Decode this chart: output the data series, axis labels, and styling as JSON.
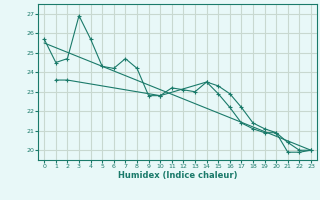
{
  "xlabel": "Humidex (Indice chaleur)",
  "background_color": "#e8f8f8",
  "grid_color": "#c8d8d0",
  "line_color": "#1a7a6a",
  "xlim": [
    -0.5,
    23.5
  ],
  "ylim": [
    19.5,
    27.5
  ],
  "yticks": [
    20,
    21,
    22,
    23,
    24,
    25,
    26,
    27
  ],
  "xticks": [
    0,
    1,
    2,
    3,
    4,
    5,
    6,
    7,
    8,
    9,
    10,
    11,
    12,
    13,
    14,
    15,
    16,
    17,
    18,
    19,
    20,
    21,
    22,
    23
  ],
  "line1_x": [
    0,
    1,
    2,
    3,
    4,
    5,
    6,
    7,
    8,
    9,
    10,
    11,
    12,
    13,
    14,
    15,
    16,
    17,
    18,
    19,
    20,
    21,
    22,
    23
  ],
  "line1_y": [
    25.7,
    24.5,
    24.7,
    26.9,
    25.7,
    24.3,
    24.2,
    24.7,
    24.2,
    22.8,
    22.8,
    23.2,
    23.1,
    23.0,
    23.5,
    22.9,
    22.2,
    21.4,
    21.1,
    20.9,
    20.9,
    19.9,
    19.9,
    20.0
  ],
  "line2_x": [
    1,
    2,
    10,
    14,
    15,
    16,
    17,
    18,
    19,
    20,
    21,
    22,
    23
  ],
  "line2_y": [
    23.6,
    23.6,
    22.8,
    23.5,
    23.3,
    22.9,
    22.2,
    21.4,
    21.1,
    20.9,
    20.4,
    20.0,
    20.0
  ],
  "trend_x": [
    0,
    23
  ],
  "trend_y": [
    25.5,
    20.0
  ]
}
